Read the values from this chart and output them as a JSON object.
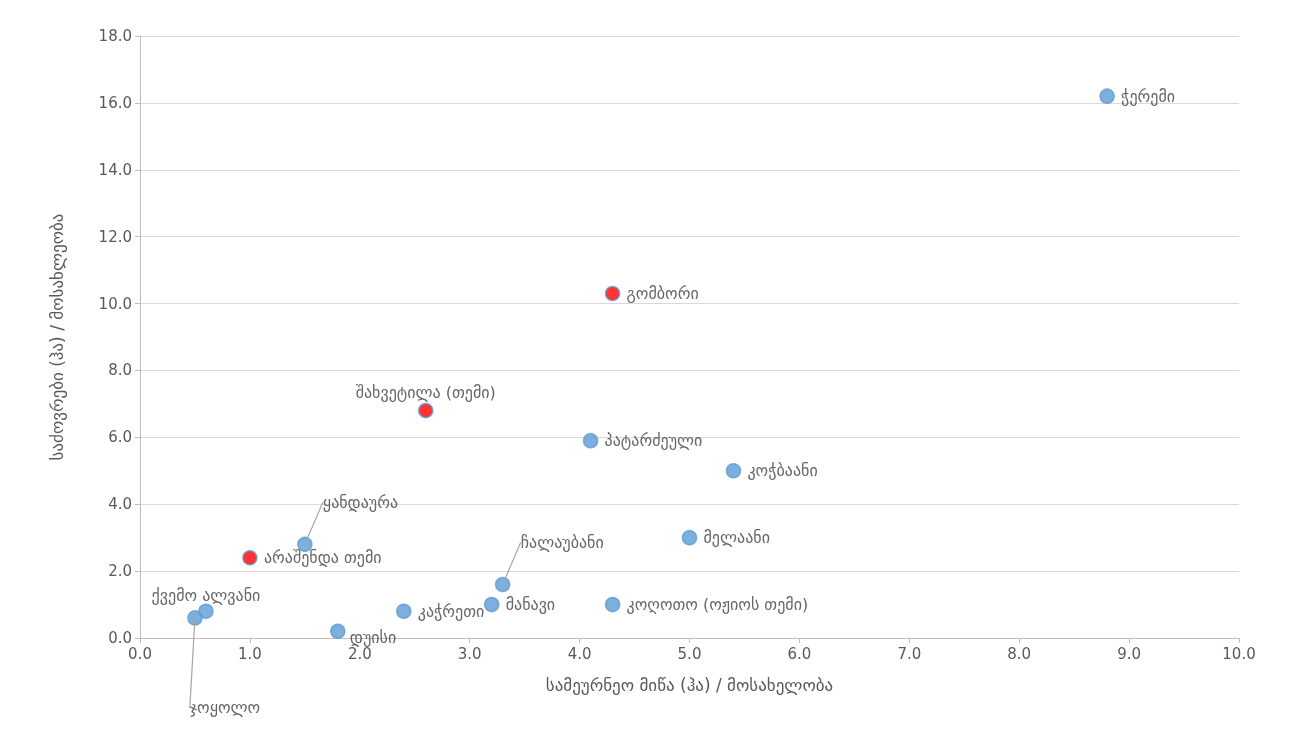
{
  "chart_data": {
    "type": "scatter",
    "xlabel": "სამეურნეო მიწა (ჰა) / მოსახელობა",
    "ylabel": "საძოვრები (ჰა) / მოსახლეობა",
    "x": [
      8.8,
      4.3,
      2.6,
      4.1,
      5.4,
      1.5,
      1.0,
      3.3,
      5.0,
      0.6,
      0.5,
      3.2,
      2.4,
      4.3,
      1.8
    ],
    "values": [
      16.2,
      10.3,
      6.8,
      5.9,
      5.0,
      2.8,
      2.4,
      1.6,
      3.0,
      0.8,
      0.6,
      1.0,
      0.8,
      1.0,
      0.2
    ],
    "colors": [
      "#5b9bd5",
      "#ff0000",
      "#ff0000",
      "#5b9bd5",
      "#5b9bd5",
      "#5b9bd5",
      "#ff0000",
      "#5b9bd5",
      "#5b9bd5",
      "#5b9bd5",
      "#5b9bd5",
      "#5b9bd5",
      "#5b9bd5",
      "#5b9bd5",
      "#5b9bd5"
    ],
    "annotations": [
      {
        "text": "ჭერემი",
        "x": 8.8,
        "y": 16.2
      },
      {
        "text": "გომბორი",
        "x": 4.3,
        "y": 10.3
      },
      {
        "text": "შახვეტილა (თემი)",
        "x": 2.6,
        "y": 6.8
      },
      {
        "text": "პატარძეული",
        "x": 4.1,
        "y": 5.9
      },
      {
        "text": "კოჭბაანი",
        "x": 5.4,
        "y": 5.0
      },
      {
        "text": "ყანდაურა",
        "x": 1.5,
        "y": 2.8
      },
      {
        "text": "არაშენდა თემი",
        "x": 1.0,
        "y": 2.4
      },
      {
        "text": "ჩალაუბანი",
        "x": 3.3,
        "y": 1.6
      },
      {
        "text": "მელაანი",
        "x": 5.0,
        "y": 3.0
      },
      {
        "text": "ქვემო ალვანი",
        "x": 0.6,
        "y": 0.8
      },
      {
        "text": "ჯოყოლო",
        "x": 0.5,
        "y": 0.6
      },
      {
        "text": "მანავი",
        "x": 3.2,
        "y": 1.0
      },
      {
        "text": "კაჭრეთი",
        "x": 2.4,
        "y": 0.8
      },
      {
        "text": "კოღოთო (ოჟიოს თემი)",
        "x": 4.3,
        "y": 1.0
      },
      {
        "text": "დუისი",
        "x": 1.8,
        "y": 0.2
      }
    ],
    "xlim": [
      0,
      10
    ],
    "xticks": [
      {
        "value": 0,
        "label": "0.0"
      },
      {
        "value": 1,
        "label": "1.0"
      },
      {
        "value": 2,
        "label": "2.0"
      },
      {
        "value": 3,
        "label": "3.0"
      },
      {
        "value": 4,
        "label": "4.0"
      },
      {
        "value": 5,
        "label": "5.0"
      },
      {
        "value": 6,
        "label": "6.0"
      },
      {
        "value": 7,
        "label": "7.0"
      },
      {
        "value": 8,
        "label": "8.0"
      },
      {
        "value": 9,
        "label": "9.0"
      },
      {
        "value": 10,
        "label": "10.0"
      }
    ],
    "ylim": [
      0,
      18
    ],
    "yticks": [
      {
        "value": 0,
        "label": "0.0"
      },
      {
        "value": 2,
        "label": "2.0"
      },
      {
        "value": 4,
        "label": "4.0"
      },
      {
        "value": 6,
        "label": "6.0"
      },
      {
        "value": 8,
        "label": "8.0"
      },
      {
        "value": 10,
        "label": "10.0"
      },
      {
        "value": 12,
        "label": "12.0"
      },
      {
        "value": 14,
        "label": "14.0"
      },
      {
        "value": 16,
        "label": "16.0"
      },
      {
        "value": 18,
        "label": "18.0"
      }
    ],
    "grid": "y",
    "marker": "circle"
  }
}
